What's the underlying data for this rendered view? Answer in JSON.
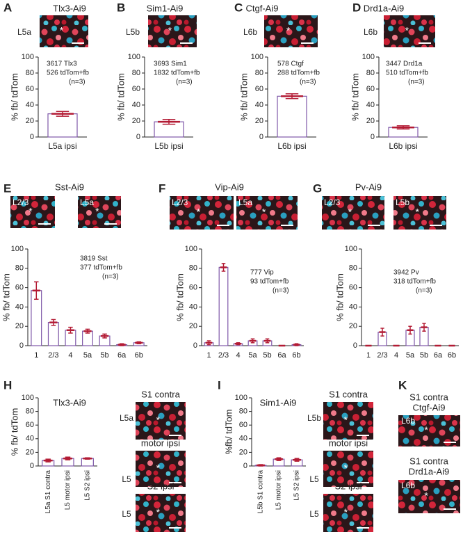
{
  "image_marker": "*",
  "chart_data": [
    {
      "type": "bar",
      "panel": "A",
      "title": "Tlx3-Ai9",
      "images": [
        {
          "label": "L5a"
        }
      ],
      "annotation": [
        "3617 Tlx3",
        "526 tdTom+fb",
        "(n=3)"
      ],
      "categories": [
        "L5a ipsi"
      ],
      "values": [
        29
      ],
      "errors": [
        3
      ],
      "ylabel": "% fb/ tdTom",
      "ylim": [
        0,
        100
      ],
      "yticks": [
        0,
        20,
        40,
        60,
        80,
        100
      ],
      "bar_color": "#7e57a8",
      "error_color": "#b31b34"
    },
    {
      "type": "bar",
      "panel": "B",
      "title": "Sim1-Ai9",
      "images": [
        {
          "label": "L5b"
        }
      ],
      "annotation": [
        "3693 Sim1",
        "1832 tdTom+fb",
        "(n=3)"
      ],
      "categories": [
        "L5b ipsi"
      ],
      "values": [
        19
      ],
      "errors": [
        3
      ],
      "ylabel": "% fb/ tdTom",
      "ylim": [
        0,
        100
      ],
      "yticks": [
        0,
        20,
        40,
        60,
        80,
        100
      ],
      "bar_color": "#7e57a8",
      "error_color": "#b31b34"
    },
    {
      "type": "bar",
      "panel": "C",
      "title": "Ctgf-Ai9",
      "images": [
        {
          "label": "L6b"
        }
      ],
      "annotation": [
        "578 Ctgf",
        "288 tdTom+fb",
        "(n=3)"
      ],
      "categories": [
        "L6b ipsi"
      ],
      "values": [
        51
      ],
      "errors": [
        3
      ],
      "ylabel": "% fb/ tdTom",
      "ylim": [
        0,
        100
      ],
      "yticks": [
        0,
        20,
        40,
        60,
        80,
        100
      ],
      "bar_color": "#7e57a8",
      "error_color": "#b31b34"
    },
    {
      "type": "bar",
      "panel": "D",
      "title": "Drd1a-Ai9",
      "images": [
        {
          "label": "L6b"
        }
      ],
      "annotation": [
        "3447 Drd1a",
        "510 tdTom+fb",
        "(n=3)"
      ],
      "categories": [
        "L6b ipsi"
      ],
      "values": [
        12
      ],
      "errors": [
        2
      ],
      "ylabel": "% fb/ tdTom",
      "ylim": [
        0,
        100
      ],
      "yticks": [
        0,
        20,
        40,
        60,
        80,
        100
      ],
      "bar_color": "#7e57a8",
      "error_color": "#b31b34"
    },
    {
      "type": "bar",
      "panel": "E",
      "title": "Sst-Ai9",
      "images": [
        {
          "label": "L2/3"
        },
        {
          "label": "L5a"
        }
      ],
      "annotation": [
        "3819 Sst",
        "377 tdTom+fb",
        "(n=3)"
      ],
      "categories": [
        "1",
        "2/3",
        "4",
        "5a",
        "5b",
        "6a",
        "6b"
      ],
      "values": [
        57,
        24,
        16,
        15,
        10,
        1,
        3
      ],
      "errors": [
        9,
        3,
        3,
        2,
        2,
        1,
        1
      ],
      "ylabel": "% fb/ tdTom",
      "ylim": [
        0,
        100
      ],
      "yticks": [
        0,
        20,
        40,
        60,
        80,
        100
      ],
      "bar_color": "#7e57a8",
      "error_color": "#b31b34"
    },
    {
      "type": "bar",
      "panel": "F",
      "title": "Vip-Ai9",
      "images": [
        {
          "label": "L2/3"
        },
        {
          "label": "L5a"
        }
      ],
      "annotation": [
        "777 Vip",
        "93 tdTom+fb",
        "(n=3)"
      ],
      "categories": [
        "1",
        "2/3",
        "4",
        "5a",
        "5b",
        "6a",
        "6b"
      ],
      "values": [
        3,
        81,
        2,
        5,
        5,
        0,
        1
      ],
      "errors": [
        2,
        4,
        1,
        2,
        2,
        0,
        1
      ],
      "ylabel": "% fb/ tdTom",
      "ylim": [
        0,
        100
      ],
      "yticks": [
        0,
        20,
        40,
        60,
        80,
        100
      ],
      "bar_color": "#7e57a8",
      "error_color": "#b31b34"
    },
    {
      "type": "bar",
      "panel": "G",
      "title": "Pv-Ai9",
      "images": [
        {
          "label": "L2/3"
        },
        {
          "label": "L5b"
        }
      ],
      "annotation": [
        "3942 Pv",
        "318 tdTom+fb",
        "(n=3)"
      ],
      "categories": [
        "1",
        "2/3",
        "4",
        "5a",
        "5b",
        "6a",
        "6b"
      ],
      "values": [
        0,
        14,
        0,
        16,
        19,
        0,
        0
      ],
      "errors": [
        0,
        4,
        0,
        4,
        4,
        0,
        0
      ],
      "ylabel": "% fb/ tdTom",
      "ylim": [
        0,
        100
      ],
      "yticks": [
        0,
        20,
        40,
        60,
        80,
        100
      ],
      "bar_color": "#7e57a8",
      "error_color": "#b31b34"
    },
    {
      "type": "bar",
      "panel": "H",
      "title": "Tlx3-Ai9",
      "images": [
        {
          "title": "S1 contra",
          "label": "L5a"
        },
        {
          "title": "motor ipsi",
          "label": "L5"
        },
        {
          "title": "S2 ipsi",
          "label": "L5"
        }
      ],
      "categories": [
        "L5a S1 contra",
        "L5 motor ipsi",
        "L5 S2 ipsi"
      ],
      "values": [
        8,
        11,
        11
      ],
      "errors": [
        2,
        2,
        1
      ],
      "ylabel": "% fb/ tdTom",
      "ylim": [
        0,
        100
      ],
      "yticks": [
        0,
        20,
        40,
        60,
        80,
        100
      ],
      "bar_color": "#7e57a8",
      "error_color": "#b31b34"
    },
    {
      "type": "bar",
      "panel": "I",
      "title": "Sim1-Ai9",
      "images": [
        {
          "title": "S1 contra",
          "label": "L5b"
        },
        {
          "title": "motor ipsi",
          "label": "L5"
        },
        {
          "title": "S2 ipsi",
          "label": "L5"
        }
      ],
      "categories": [
        "L5b S1 contra",
        "L5 motor ipsi",
        "L5 S2 ipsi"
      ],
      "values": [
        1,
        10,
        9
      ],
      "errors": [
        1,
        2,
        2
      ],
      "ylabel": "%fb/ tdTom",
      "ylim": [
        0,
        100
      ],
      "yticks": [
        0,
        20,
        40,
        60,
        80,
        100
      ],
      "bar_color": "#7e57a8",
      "error_color": "#b31b34"
    }
  ],
  "panel_k": {
    "panel": "K",
    "images": [
      {
        "title": [
          "S1 contra",
          "Ctgf-Ai9"
        ],
        "label": "L6b"
      },
      {
        "title": [
          "S1 contra",
          "Drd1a-Ai9"
        ],
        "label": "L6b"
      }
    ]
  }
}
